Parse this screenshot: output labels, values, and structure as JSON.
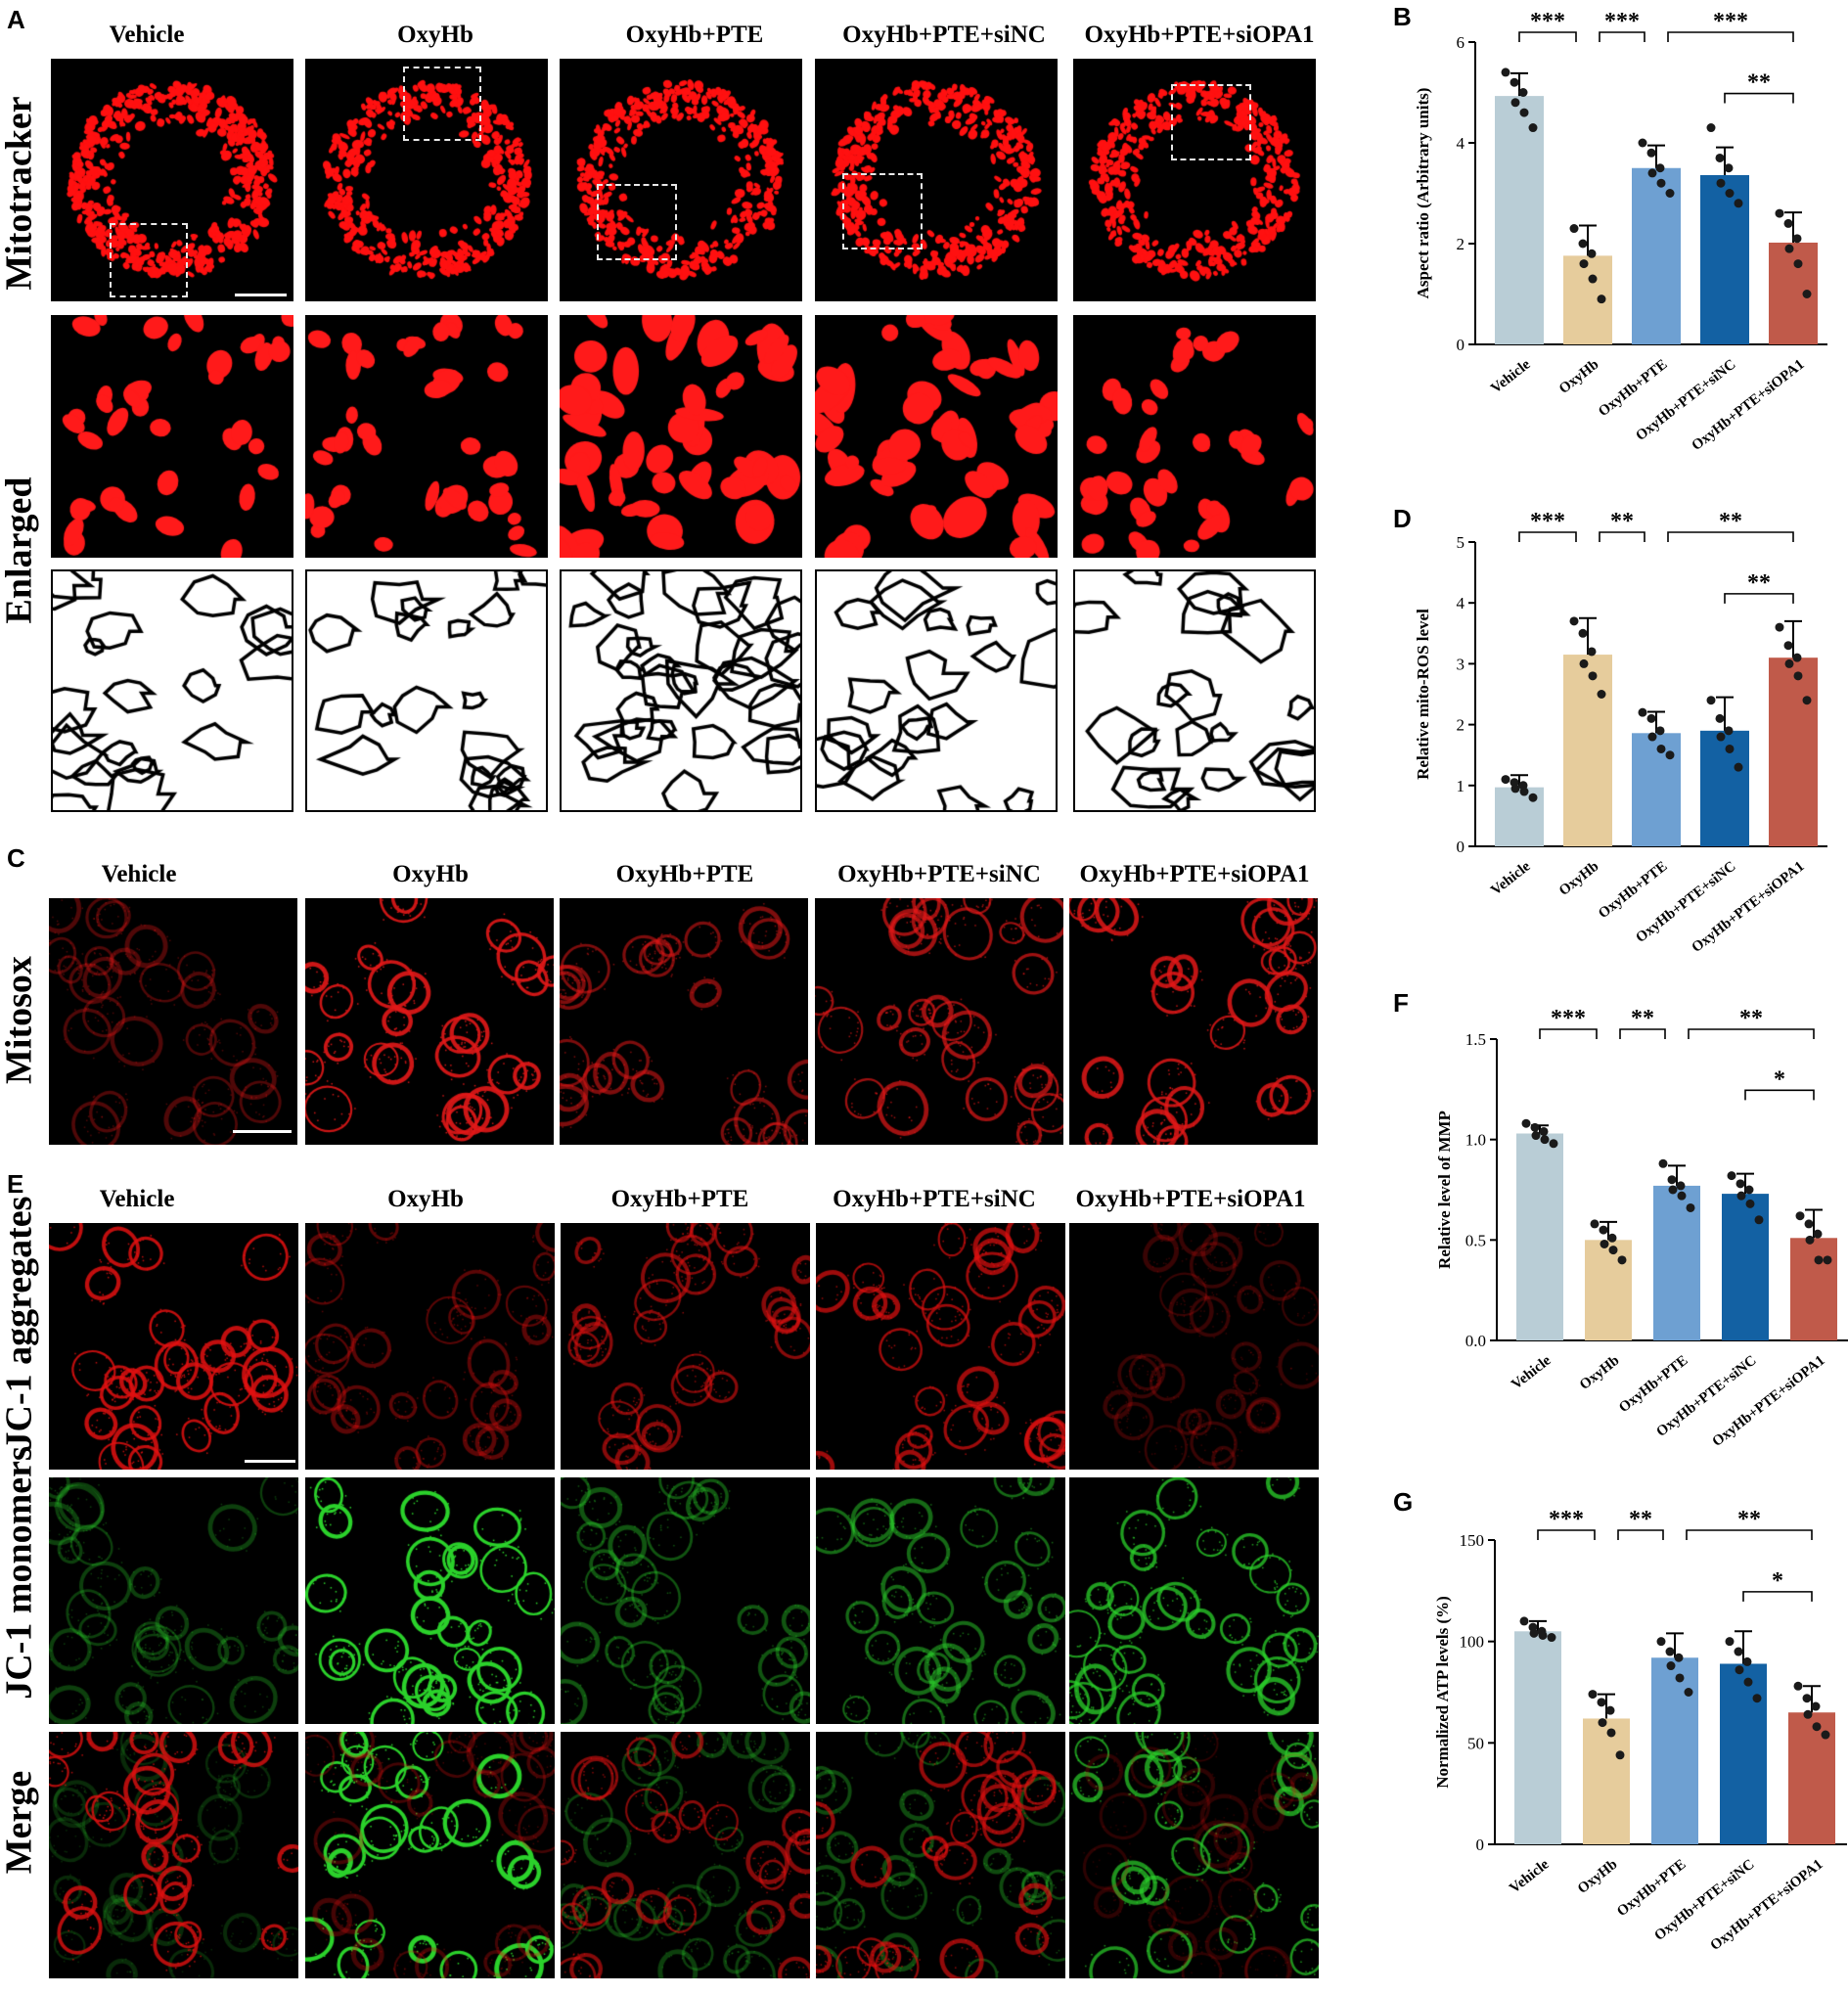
{
  "panels": {
    "A": {
      "letter": "A",
      "columns": [
        "Vehicle",
        "OxyHb",
        "OxyHb+PTE",
        "OxyHb+PTE+siNC",
        "OxyHb+PTE+siOPA1"
      ],
      "row_labels": [
        "Mitotracker",
        "Enlarged"
      ]
    },
    "C": {
      "letter": "C",
      "columns": [
        "Vehicle",
        "OxyHb",
        "OxyHb+PTE",
        "OxyHb+PTE+siNC",
        "OxyHb+PTE+siOPA1"
      ],
      "row_labels": [
        "Mitosox"
      ]
    },
    "E": {
      "letter": "E",
      "columns": [
        "Vehicle",
        "OxyHb",
        "OxyHb+PTE",
        "OxyHb+PTE+siNC",
        "OxyHb+PTE+siOPA1"
      ],
      "row_labels": [
        "JC-1 aggregates",
        "JC-1 monomers",
        "Merge"
      ]
    }
  },
  "chart_data": [
    {
      "panel": "B",
      "type": "bar",
      "ylabel": "Aspect ratio (Arbitrary units)",
      "categories": [
        "Vehicle",
        "OxyHb",
        "OxyHb+PTE",
        "OxyHb+PTE+siNC",
        "OxyHb+PTE+siOPA1"
      ],
      "values": [
        4.93,
        1.76,
        3.5,
        3.36,
        2.02
      ],
      "errors": [
        0.45,
        0.6,
        0.45,
        0.55,
        0.6
      ],
      "points": [
        [
          5.4,
          5.2,
          5.0,
          4.8,
          4.6,
          4.3
        ],
        [
          2.3,
          2.0,
          1.8,
          1.6,
          1.3,
          0.9
        ],
        [
          4.0,
          3.8,
          3.5,
          3.4,
          3.2,
          3.0
        ],
        [
          4.3,
          3.7,
          3.5,
          3.2,
          3.0,
          2.8
        ],
        [
          2.6,
          2.4,
          2.1,
          1.9,
          1.6,
          1.0
        ]
      ],
      "colors": [
        "#b9cdd6",
        "#e6cc9c",
        "#6ea0d2",
        "#1361a3",
        "#c05a4a"
      ],
      "ylim": [
        0,
        6
      ],
      "yticks": [
        "0",
        "2",
        "4",
        "6"
      ],
      "sig": [
        {
          "from": 0,
          "to": 1,
          "label": "***",
          "level": 0
        },
        {
          "from": 1,
          "to": 2,
          "label": "***",
          "level": 0
        },
        {
          "from": 2,
          "to": 4,
          "label": "***",
          "level": 0
        },
        {
          "from": 3,
          "to": 4,
          "label": "**",
          "level": 1
        }
      ]
    },
    {
      "panel": "D",
      "type": "bar",
      "ylabel": "Relative mito-ROS level",
      "categories": [
        "Vehicle",
        "OxyHb",
        "OxyHb+PTE",
        "OxyHb+PTE+siNC",
        "OxyHb+PTE+siOPA1"
      ],
      "values": [
        0.97,
        3.15,
        1.86,
        1.9,
        3.1
      ],
      "errors": [
        0.2,
        0.6,
        0.35,
        0.55,
        0.6
      ],
      "points": [
        [
          1.1,
          1.05,
          1.0,
          0.95,
          0.9,
          0.8
        ],
        [
          3.7,
          3.5,
          3.2,
          3.0,
          2.8,
          2.5
        ],
        [
          2.2,
          2.1,
          1.9,
          1.8,
          1.6,
          1.5
        ],
        [
          2.4,
          2.1,
          1.9,
          1.8,
          1.6,
          1.3
        ],
        [
          3.6,
          3.3,
          3.1,
          3.0,
          2.8,
          2.4
        ]
      ],
      "colors": [
        "#b9cdd6",
        "#e6cc9c",
        "#6ea0d2",
        "#1361a3",
        "#c05a4a"
      ],
      "ylim": [
        0,
        5
      ],
      "yticks": [
        "0",
        "1",
        "2",
        "3",
        "4",
        "5"
      ],
      "sig": [
        {
          "from": 0,
          "to": 1,
          "label": "***",
          "level": 0
        },
        {
          "from": 1,
          "to": 2,
          "label": "**",
          "level": 0
        },
        {
          "from": 2,
          "to": 4,
          "label": "**",
          "level": 0
        },
        {
          "from": 3,
          "to": 4,
          "label": "**",
          "level": 1
        }
      ]
    },
    {
      "panel": "F",
      "type": "bar",
      "ylabel": "Relative level of MMP",
      "categories": [
        "Vehicle",
        "OxyHb",
        "OxyHb+PTE",
        "OxyHb+PTE+siNC",
        "OxyHb+PTE+siOPA1"
      ],
      "values": [
        1.03,
        0.5,
        0.77,
        0.73,
        0.51
      ],
      "errors": [
        0.04,
        0.09,
        0.1,
        0.1,
        0.14
      ],
      "points": [
        [
          1.08,
          1.06,
          1.04,
          1.02,
          1.0,
          0.98
        ],
        [
          0.58,
          0.55,
          0.51,
          0.48,
          0.45,
          0.4
        ],
        [
          0.88,
          0.8,
          0.77,
          0.75,
          0.72,
          0.66
        ],
        [
          0.82,
          0.78,
          0.75,
          0.72,
          0.68,
          0.6
        ],
        [
          0.62,
          0.58,
          0.53,
          0.5,
          0.4,
          0.4
        ]
      ],
      "colors": [
        "#b9cdd6",
        "#e6cc9c",
        "#6ea0d2",
        "#1361a3",
        "#c05a4a"
      ],
      "ylim": [
        0,
        1.5
      ],
      "yticks": [
        "0.0",
        "0.5",
        "1.0",
        "1.5"
      ],
      "sig": [
        {
          "from": 0,
          "to": 1,
          "label": "***",
          "level": 0
        },
        {
          "from": 1,
          "to": 2,
          "label": "**",
          "level": 0
        },
        {
          "from": 2,
          "to": 4,
          "label": "**",
          "level": 0
        },
        {
          "from": 3,
          "to": 4,
          "label": "*",
          "level": 1
        }
      ]
    },
    {
      "panel": "G",
      "type": "bar",
      "ylabel": "Normalized ATP levels (%)",
      "categories": [
        "Vehicle",
        "OxyHb",
        "OxyHb+PTE",
        "OxyHb+PTE+siNC",
        "OxyHb+PTE+siOPA1"
      ],
      "values": [
        105,
        62,
        92,
        89,
        65
      ],
      "errors": [
        5,
        12,
        12,
        16,
        13
      ],
      "points": [
        [
          110,
          107,
          105,
          104,
          103,
          102
        ],
        [
          74,
          70,
          66,
          60,
          55,
          44
        ],
        [
          100,
          95,
          92,
          88,
          82,
          75
        ],
        [
          100,
          95,
          90,
          86,
          80,
          72
        ],
        [
          78,
          72,
          68,
          64,
          58,
          54
        ]
      ],
      "colors": [
        "#b9cdd6",
        "#e6cc9c",
        "#6ea0d2",
        "#1361a3",
        "#c05a4a"
      ],
      "ylim": [
        0,
        150
      ],
      "yticks": [
        "0",
        "50",
        "100",
        "150"
      ],
      "sig": [
        {
          "from": 0,
          "to": 1,
          "label": "***",
          "level": 0
        },
        {
          "from": 1,
          "to": 2,
          "label": "**",
          "level": 0
        },
        {
          "from": 2,
          "to": 4,
          "label": "**",
          "level": 0
        },
        {
          "from": 3,
          "to": 4,
          "label": "*",
          "level": 1
        }
      ]
    }
  ]
}
